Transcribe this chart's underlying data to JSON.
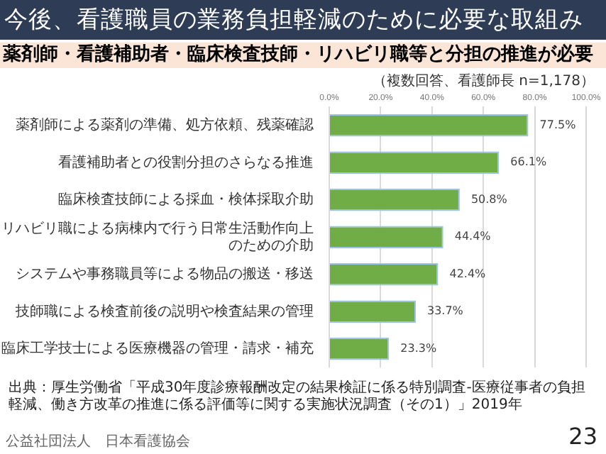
{
  "chart_data": {
    "type": "bar",
    "orientation": "horizontal",
    "title": "今後、看護職員の業務負担軽減のために必要な取組み",
    "subtitle": "薬剤師・看護補助者・臨床検査技師・リハビリ職等と分担の推進が必要",
    "categories": [
      "薬剤師による薬剤の準備、処方依頼、残薬確認",
      "看護補助者との役割分担のさらなる推進",
      "臨床検査技師による採血・検体採取介助",
      "リハビリ職による病棟内で行う日常生活動作向上のための介助",
      "システムや事務職員等による物品の搬送・移送",
      "技師職による検査前後の説明や検査結果の管理",
      "臨床工学技士による医療機器の管理・請求・補充"
    ],
    "values": [
      77.5,
      66.1,
      50.8,
      44.4,
      42.4,
      33.7,
      23.3
    ],
    "value_labels": [
      "77.5%",
      "66.1%",
      "50.8%",
      "44.4%",
      "42.4%",
      "33.7%",
      "23.3%"
    ],
    "color": "#70ad47",
    "xlim": [
      0,
      100
    ],
    "xticks": [
      {
        "value": 0,
        "label": "0.0%"
      },
      {
        "value": 20,
        "label": "20.0%"
      },
      {
        "value": 40,
        "label": "40.0%"
      },
      {
        "value": 60,
        "label": "60.0%"
      },
      {
        "value": 80,
        "label": "80.0%"
      },
      {
        "value": 100,
        "label": "100.0%"
      }
    ],
    "grid": "x",
    "legend": false,
    "annotations": [
      "（複数回答、看護師長 n=1,178）",
      "出典：厚生労働省「平成30年度診療報酬改定の結果検証に係る特別調査-医療従事者の負担軽減、働き方改革の推進に係る評価等に関する実施状況調査（その1）」2019年",
      "公益社団法人　日本看護協会",
      "23"
    ]
  }
}
